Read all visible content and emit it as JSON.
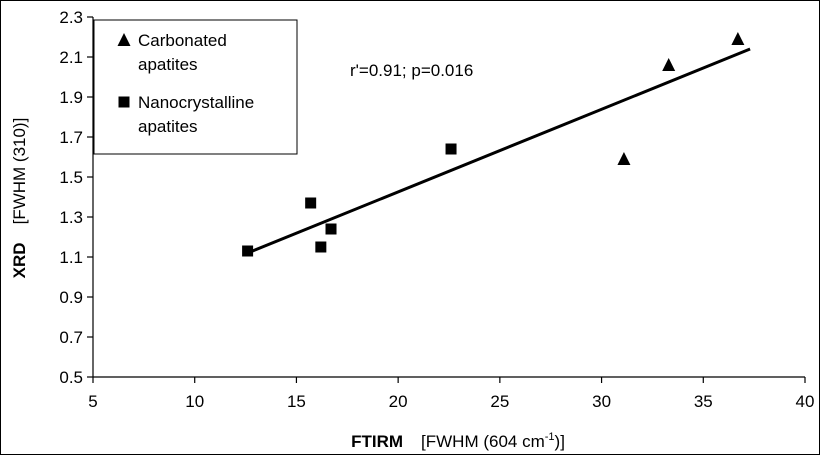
{
  "chart_data": {
    "type": "scatter",
    "xlabel_bold": "FTIRM",
    "xlabel_rest_pre": "[FWHM (604 cm",
    "xlabel_sup": "-1",
    "xlabel_rest_post": ")]",
    "ylabel_bold": "XRD",
    "ylabel_rest": "[FWHM (310)]",
    "xlim": [
      5,
      40
    ],
    "ylim": [
      0.5,
      2.3
    ],
    "x_ticks": [
      5,
      10,
      15,
      20,
      25,
      30,
      35,
      40
    ],
    "y_ticks": [
      0.5,
      0.7,
      0.9,
      1.1,
      1.3,
      1.5,
      1.7,
      1.9,
      2.1,
      2.3
    ],
    "y_tick_labels": [
      "0.5",
      "0.7",
      "0.9",
      "1.1",
      "1.3",
      "1.5",
      "1.7",
      "1.9",
      "2.1",
      "2.3"
    ],
    "grid": false,
    "legend_position": "top-left",
    "annotation": "r'=0.91; p=0.016",
    "series": [
      {
        "name_lines": [
          "Carbonated",
          "apatites"
        ],
        "marker": "triangle",
        "color": "#000000",
        "points": [
          [
            31.1,
            1.59
          ],
          [
            33.3,
            2.06
          ],
          [
            36.7,
            2.19
          ]
        ]
      },
      {
        "name_lines": [
          "Nanocrystalline",
          "apatites"
        ],
        "marker": "square",
        "color": "#000000",
        "points": [
          [
            12.6,
            1.13
          ],
          [
            15.7,
            1.37
          ],
          [
            16.2,
            1.15
          ],
          [
            16.7,
            1.24
          ],
          [
            22.6,
            1.64
          ]
        ]
      }
    ],
    "trendline": {
      "x": [
        12.6,
        37.3
      ],
      "y": [
        1.12,
        2.14
      ]
    }
  }
}
